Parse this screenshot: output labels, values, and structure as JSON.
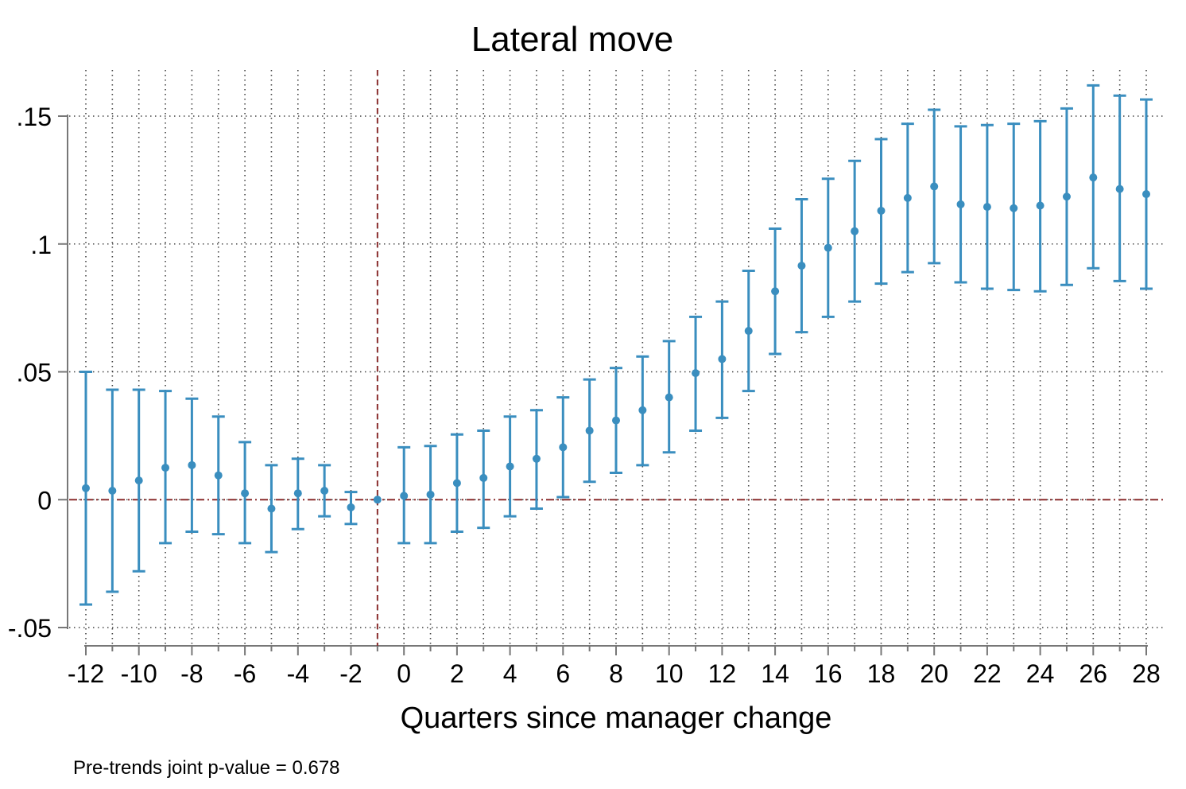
{
  "chart_data": {
    "type": "scatter",
    "title": "Lateral move",
    "xlabel": "Quarters since manager change",
    "ylabel": "",
    "note": "Pre-trends joint p-value = 0.678",
    "xlim": [
      -12,
      28
    ],
    "ylim": [
      -0.05,
      0.15
    ],
    "x_ticks": [
      -12,
      -10,
      -8,
      -6,
      -4,
      -2,
      0,
      2,
      4,
      6,
      8,
      10,
      12,
      14,
      16,
      18,
      20,
      22,
      24,
      26,
      28
    ],
    "x_tick_labels": [
      "-12",
      "-10",
      "-8",
      "-6",
      "-4",
      "-2",
      "0",
      "2",
      "4",
      "6",
      "8",
      "10",
      "12",
      "14",
      "16",
      "18",
      "20",
      "22",
      "24",
      "26",
      "28"
    ],
    "y_ticks": [
      -0.05,
      0,
      0.05,
      0.1,
      0.15
    ],
    "y_tick_labels": [
      "-.05",
      "0",
      ".05",
      ".1",
      ".15"
    ],
    "grid": true,
    "reference_lines": {
      "vertical_x": -1,
      "horizontal_y": 0
    },
    "colors": {
      "series": "#3a8ebf",
      "reference": "#8b2e2e",
      "grid": "#444444",
      "axis": "#777777"
    },
    "series": [
      {
        "x": [
          -12,
          -11,
          -10,
          -9,
          -8,
          -7,
          -6,
          -5,
          -4,
          -3,
          -2,
          -1,
          0,
          1,
          2,
          3,
          4,
          5,
          6,
          7,
          8,
          9,
          10,
          11,
          12,
          13,
          14,
          15,
          16,
          17,
          18,
          19,
          20,
          21,
          22,
          23,
          24,
          25,
          26,
          27,
          28
        ],
        "y": [
          0.0045,
          0.0035,
          0.0075,
          0.0125,
          0.0135,
          0.0095,
          0.0025,
          -0.0035,
          0.0025,
          0.0035,
          -0.003,
          0.0,
          0.0015,
          0.002,
          0.0065,
          0.0085,
          0.013,
          0.016,
          0.0205,
          0.027,
          0.031,
          0.035,
          0.04,
          0.0495,
          0.055,
          0.066,
          0.0815,
          0.0915,
          0.0985,
          0.105,
          0.113,
          0.118,
          0.1225,
          0.1155,
          0.1145,
          0.114,
          0.115,
          0.1185,
          0.126,
          0.1215,
          0.1195
        ],
        "lower": [
          -0.041,
          -0.036,
          -0.028,
          -0.017,
          -0.0125,
          -0.0135,
          -0.017,
          -0.0205,
          -0.0115,
          -0.0065,
          -0.0095,
          0.0,
          -0.017,
          -0.017,
          -0.0125,
          -0.011,
          -0.0065,
          -0.0035,
          0.001,
          0.007,
          0.0105,
          0.0135,
          0.0185,
          0.027,
          0.032,
          0.0425,
          0.057,
          0.0655,
          0.0715,
          0.0775,
          0.0845,
          0.089,
          0.0925,
          0.085,
          0.0825,
          0.082,
          0.0815,
          0.084,
          0.0905,
          0.0855,
          0.0825
        ],
        "upper": [
          0.05,
          0.043,
          0.043,
          0.0425,
          0.0395,
          0.0325,
          0.0225,
          0.0135,
          0.016,
          0.0135,
          0.003,
          0.0,
          0.0205,
          0.021,
          0.0255,
          0.027,
          0.0325,
          0.035,
          0.04,
          0.047,
          0.0515,
          0.056,
          0.062,
          0.0715,
          0.0775,
          0.0895,
          0.106,
          0.1175,
          0.1255,
          0.1325,
          0.141,
          0.147,
          0.1525,
          0.146,
          0.1465,
          0.147,
          0.148,
          0.153,
          0.162,
          0.158,
          0.1565
        ]
      }
    ]
  }
}
